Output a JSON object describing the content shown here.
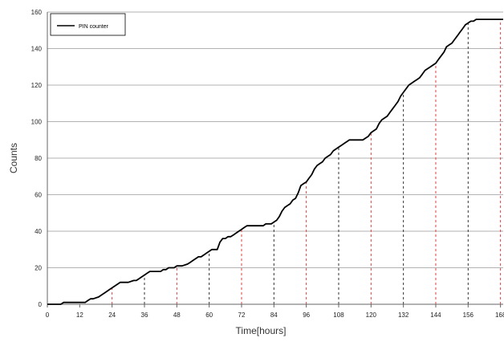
{
  "chart_data": {
    "type": "line",
    "title": "",
    "xlabel": "Time[hours]",
    "ylabel": "Counts",
    "xlim": [
      0,
      169
    ],
    "ylim": [
      0,
      160
    ],
    "xticks": [
      "0",
      "12",
      "24",
      "36",
      "48",
      "60",
      "72",
      "84",
      "96",
      "108",
      "120",
      "132",
      "144",
      "156",
      "168"
    ],
    "yticks": [
      "0",
      "20",
      "40",
      "60",
      "80",
      "100",
      "120",
      "140",
      "160"
    ],
    "grid": "horizontal",
    "legend": {
      "position": "top-left",
      "entries": [
        "PIN counter"
      ]
    },
    "series": [
      {
        "name": "PIN counter",
        "color": "#000000",
        "x": [
          5,
          6,
          14,
          15,
          16,
          17,
          19,
          20,
          21,
          22,
          23,
          24,
          25,
          26,
          27,
          28,
          29,
          30,
          32,
          33,
          34,
          35,
          36,
          37,
          38,
          39,
          40,
          42,
          43,
          44,
          45,
          46,
          47,
          48,
          50,
          52,
          53,
          54,
          55,
          56,
          57,
          58,
          59,
          60,
          61,
          63,
          64,
          65,
          66,
          67,
          68,
          69,
          70,
          71,
          72,
          73,
          74,
          75,
          76,
          79,
          80,
          81,
          83,
          84,
          85,
          86,
          87,
          88,
          89,
          90,
          91,
          92,
          93,
          94,
          95,
          96,
          97,
          98,
          99,
          100,
          101,
          102,
          103,
          104,
          105,
          106,
          107,
          108,
          109,
          110,
          111,
          112,
          113,
          114,
          115,
          116,
          117,
          118,
          119,
          120,
          121,
          122,
          123,
          124,
          125,
          126,
          127,
          128,
          129,
          130,
          131,
          132,
          133,
          134,
          135,
          136,
          137,
          138,
          139,
          140,
          141,
          142,
          143,
          144,
          145,
          146,
          147,
          148,
          149,
          150,
          151,
          152,
          153,
          154,
          155,
          156,
          157,
          158,
          159,
          160,
          161,
          162,
          163,
          164,
          165,
          166,
          167,
          168,
          169
        ],
        "y": [
          0,
          1,
          1,
          2,
          3,
          3,
          4,
          5,
          6,
          7,
          8,
          9,
          10,
          11,
          12,
          12,
          12,
          12,
          13,
          13,
          14,
          15,
          16,
          17,
          18,
          18,
          18,
          18,
          19,
          19,
          20,
          20,
          20,
          21,
          21,
          22,
          23,
          24,
          25,
          26,
          26,
          27,
          28,
          29,
          30,
          30,
          34,
          36,
          36,
          37,
          37,
          38,
          39,
          40,
          41,
          42,
          43,
          43,
          43,
          43,
          43,
          44,
          44,
          45,
          46,
          48,
          51,
          53,
          54,
          55,
          57,
          58,
          61,
          65,
          66,
          67,
          69,
          71,
          74,
          76,
          77,
          78,
          80,
          81,
          82,
          84,
          85,
          86,
          87,
          88,
          89,
          90,
          90,
          90,
          90,
          90,
          90,
          91,
          92,
          94,
          95,
          96,
          99,
          101,
          102,
          103,
          105,
          107,
          109,
          111,
          114,
          116,
          118,
          120,
          121,
          122,
          123,
          124,
          126,
          128,
          129,
          130,
          131,
          132,
          134,
          136,
          138,
          141,
          142,
          143,
          145,
          147,
          149,
          151,
          153,
          154,
          155,
          155,
          156,
          156,
          156,
          156,
          156,
          156,
          156,
          156,
          156,
          156,
          156
        ]
      }
    ],
    "markers": {
      "x": [
        24,
        36,
        48,
        60,
        72,
        84,
        96,
        108,
        120,
        132,
        144,
        156,
        168
      ],
      "colors": [
        "#e04040",
        "#333333",
        "#e04040",
        "#333333",
        "#e04040",
        "#333333",
        "#e04040",
        "#333333",
        "#e04040",
        "#333333",
        "#e04040",
        "#333333",
        "#e04040"
      ]
    }
  }
}
